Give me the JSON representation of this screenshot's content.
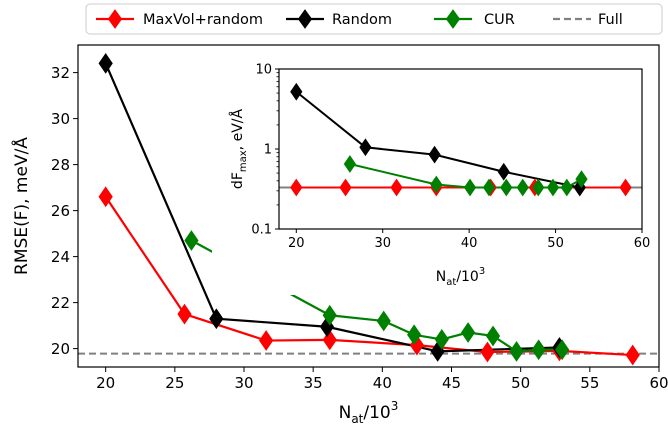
{
  "chart_data": [
    {
      "type": "line",
      "xlabel_base": "N",
      "xlabel_sub": "at",
      "xlabel_suffix": "/10",
      "xlabel_sup": "3",
      "ylabel": "RMSE(F), meV/Å",
      "xlim": [
        18,
        60
      ],
      "ylim": [
        19.2,
        33.2
      ],
      "xticks": [
        20,
        25,
        30,
        35,
        40,
        45,
        50,
        55,
        60
      ],
      "yticks": [
        20,
        22,
        24,
        26,
        28,
        30,
        32
      ],
      "grid": false,
      "legend": {
        "placement": "top",
        "entries": [
          "MaxVol+random",
          "Random",
          "CUR",
          "Full"
        ]
      },
      "reference_line": {
        "name": "Full",
        "y": 19.78,
        "color": "#808080",
        "style": "dashed"
      },
      "series": [
        {
          "name": "MaxVol+random",
          "color": "#ff0000",
          "x": [
            20.0,
            25.7,
            31.6,
            36.2,
            42.5,
            47.6,
            52.8,
            58.1
          ],
          "y": [
            26.6,
            21.5,
            20.35,
            20.38,
            20.15,
            19.85,
            19.9,
            19.72
          ]
        },
        {
          "name": "Random",
          "color": "#000000",
          "x": [
            20.0,
            28.0,
            36.0,
            44.0,
            52.8
          ],
          "y": [
            32.4,
            21.3,
            20.95,
            19.88,
            20.05
          ]
        },
        {
          "name": "CUR",
          "color": "#008000",
          "x": [
            26.2,
            36.2,
            40.1,
            42.3,
            44.3,
            46.2,
            48.0,
            49.7,
            51.3,
            53.0
          ],
          "y": [
            24.7,
            21.45,
            21.2,
            20.6,
            20.4,
            20.7,
            20.55,
            19.88,
            19.95,
            19.95
          ]
        }
      ]
    },
    {
      "type": "line",
      "xlabel_base": "N",
      "xlabel_sub": "at",
      "xlabel_suffix": "/10",
      "xlabel_sup": "3",
      "ylabel_base": "dF",
      "ylabel_sub": "max",
      "ylabel_suffix": ", eV/Å",
      "xlim": [
        18,
        60
      ],
      "ylim": [
        0.1,
        10
      ],
      "yscale": "log",
      "xticks": [
        20,
        30,
        40,
        50,
        60
      ],
      "yticks": [
        0.1,
        1,
        10
      ],
      "ytick_labels": [
        "0.1",
        "1",
        "10"
      ],
      "grid": false,
      "reference_line": {
        "name": "Full",
        "y": 0.33,
        "color": "#808080",
        "style": "solid"
      },
      "series": [
        {
          "name": "MaxVol+random",
          "color": "#ff0000",
          "x": [
            20.0,
            25.7,
            31.6,
            36.2,
            42.5,
            47.6,
            52.8,
            58.1
          ],
          "y": [
            0.33,
            0.33,
            0.33,
            0.33,
            0.33,
            0.33,
            0.33,
            0.33
          ]
        },
        {
          "name": "Random",
          "color": "#000000",
          "x": [
            20.0,
            28.0,
            36.0,
            44.0,
            52.8
          ],
          "y": [
            5.2,
            1.05,
            0.85,
            0.52,
            0.33
          ]
        },
        {
          "name": "CUR",
          "color": "#008000",
          "x": [
            26.2,
            36.2,
            40.1,
            42.3,
            44.3,
            46.2,
            48.0,
            49.7,
            51.3,
            53.0
          ],
          "y": [
            0.65,
            0.36,
            0.33,
            0.33,
            0.33,
            0.33,
            0.33,
            0.33,
            0.33,
            0.42
          ]
        }
      ]
    }
  ]
}
